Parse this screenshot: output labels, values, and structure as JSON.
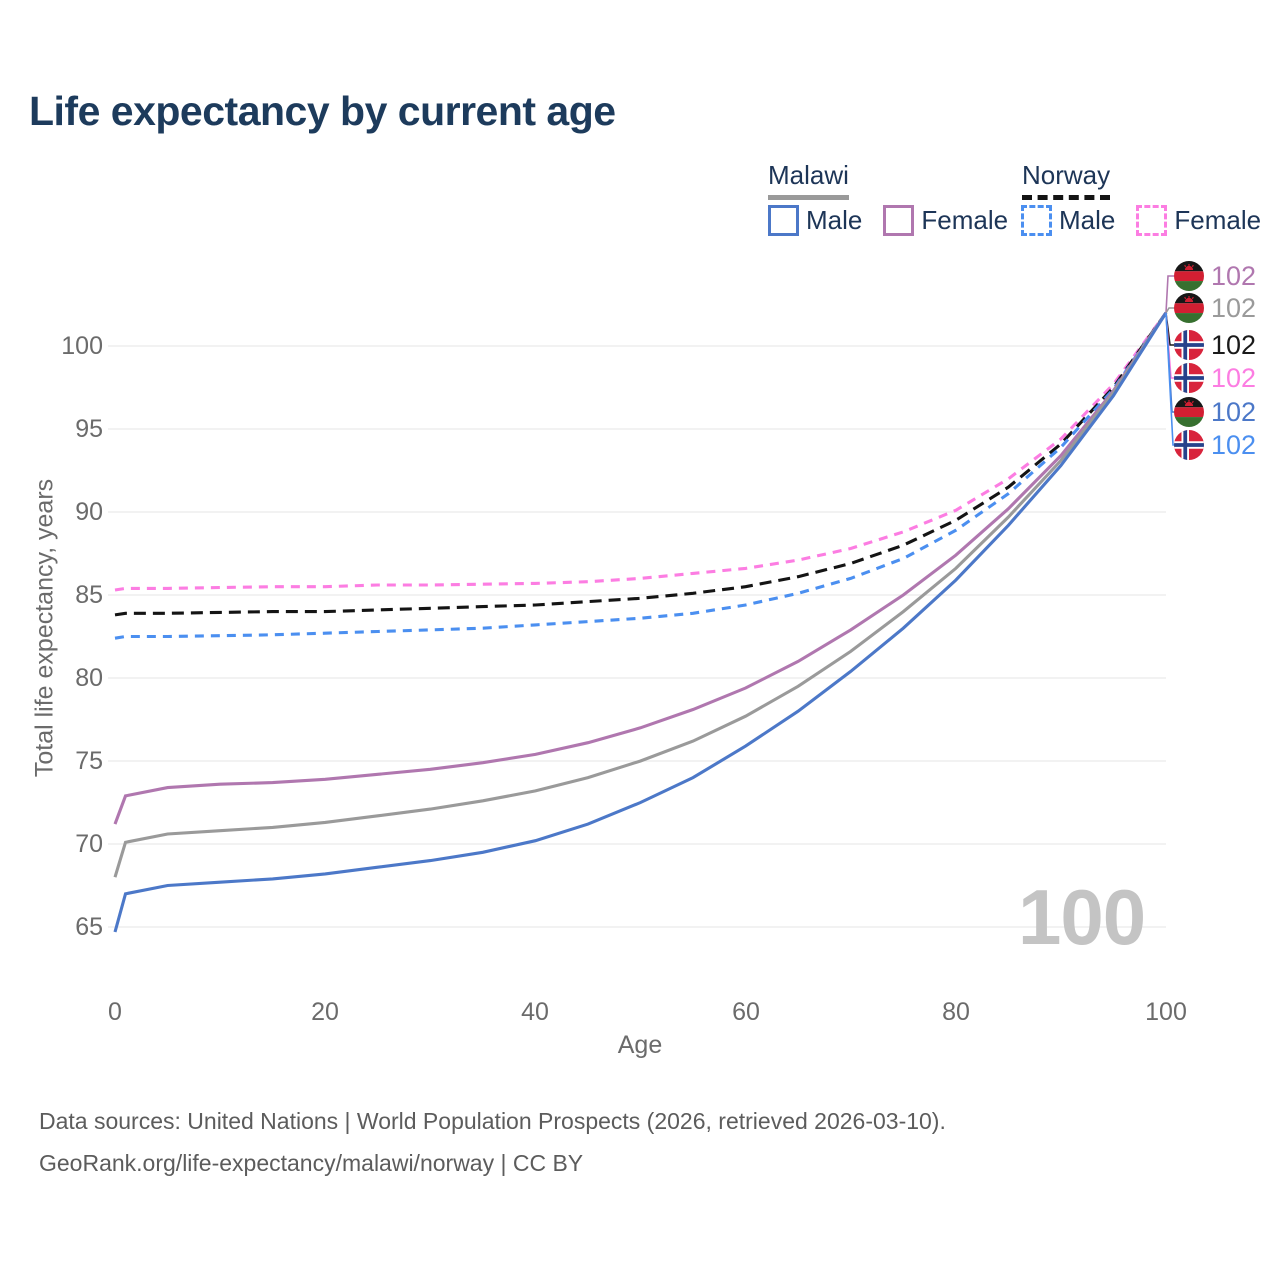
{
  "title": "Life expectancy by current age",
  "legend": {
    "groups": [
      {
        "label": "Malawi",
        "items": [
          {
            "label": "Male"
          },
          {
            "label": "Female"
          }
        ]
      },
      {
        "label": "Norway",
        "items": [
          {
            "label": "Male"
          },
          {
            "label": "Female"
          }
        ]
      }
    ]
  },
  "colors": {
    "malawi_male": "#4c78c8",
    "malawi_both": "#9a9a9a",
    "malawi_female": "#b077af",
    "norway_male": "#4b8ff0",
    "norway_both": "#141414",
    "norway_female": "#fc7de2",
    "title_text": "#1d3b5c",
    "axis_text": "#6b6b6b",
    "grid": "#eaeaea",
    "watermark": "#c4c4c4"
  },
  "chart_data": {
    "type": "line",
    "title": "Life expectancy by current age",
    "xlabel": "Age",
    "ylabel": "Total life expectancy, years",
    "xlim": [
      0,
      100
    ],
    "ylim": [
      64.5,
      103
    ],
    "x_ticks": [
      0,
      20,
      40,
      60,
      80,
      100
    ],
    "y_ticks": [
      65,
      70,
      75,
      80,
      85,
      90,
      95,
      100
    ],
    "grid": "horizontal",
    "legend_position": "top-right",
    "watermark": "100",
    "x": [
      0,
      1,
      5,
      10,
      15,
      20,
      25,
      30,
      35,
      40,
      45,
      50,
      55,
      60,
      65,
      70,
      75,
      80,
      85,
      90,
      95,
      100
    ],
    "series": [
      {
        "name": "Norway Female",
        "country": "Norway",
        "sex": "Female",
        "style": "dashed",
        "color": "#fc7de2",
        "end_label": "102",
        "values": [
          85.3,
          85.4,
          85.4,
          85.45,
          85.5,
          85.5,
          85.6,
          85.6,
          85.65,
          85.7,
          85.8,
          86.0,
          86.3,
          86.6,
          87.1,
          87.8,
          88.8,
          90.1,
          92.0,
          94.4,
          97.7,
          102
        ]
      },
      {
        "name": "Norway Both sexes",
        "country": "Norway",
        "sex": "Both",
        "style": "dashed",
        "color": "#141414",
        "end_label": "102",
        "values": [
          83.8,
          83.9,
          83.9,
          83.95,
          84.0,
          84.0,
          84.1,
          84.2,
          84.3,
          84.4,
          84.6,
          84.8,
          85.1,
          85.5,
          86.1,
          86.9,
          88.0,
          89.5,
          91.5,
          94.1,
          97.5,
          102
        ]
      },
      {
        "name": "Norway Male",
        "country": "Norway",
        "sex": "Male",
        "style": "dashed",
        "color": "#4b8ff0",
        "end_label": "102",
        "values": [
          82.4,
          82.5,
          82.5,
          82.55,
          82.6,
          82.7,
          82.8,
          82.9,
          83.0,
          83.2,
          83.4,
          83.6,
          83.9,
          84.4,
          85.1,
          86.0,
          87.2,
          88.9,
          91.1,
          93.9,
          97.4,
          102
        ]
      },
      {
        "name": "Malawi Female",
        "country": "Malawi",
        "sex": "Female",
        "style": "solid",
        "color": "#b077af",
        "end_label": "102",
        "values": [
          71.2,
          72.9,
          73.4,
          73.6,
          73.7,
          73.9,
          74.2,
          74.5,
          74.9,
          75.4,
          76.1,
          77.0,
          78.1,
          79.4,
          81.0,
          82.9,
          85.0,
          87.4,
          90.2,
          93.4,
          97.3,
          102
        ]
      },
      {
        "name": "Malawi Both sexes",
        "country": "Malawi",
        "sex": "Both",
        "style": "solid",
        "color": "#9a9a9a",
        "end_label": "102",
        "values": [
          68.0,
          70.1,
          70.6,
          70.8,
          71.0,
          71.3,
          71.7,
          72.1,
          72.6,
          73.2,
          74.0,
          75.0,
          76.2,
          77.7,
          79.5,
          81.6,
          84.0,
          86.6,
          89.7,
          93.1,
          97.2,
          102
        ]
      },
      {
        "name": "Malawi Male",
        "country": "Malawi",
        "sex": "Male",
        "style": "solid",
        "color": "#4c78c8",
        "end_label": "102",
        "values": [
          64.7,
          67.0,
          67.5,
          67.7,
          67.9,
          68.2,
          68.6,
          69.0,
          69.5,
          70.2,
          71.2,
          72.5,
          74.0,
          75.9,
          78.0,
          80.4,
          83.0,
          85.9,
          89.2,
          92.8,
          97.0,
          102
        ]
      }
    ]
  },
  "end_labels": [
    {
      "flag": "malawi",
      "series": "Malawi Female",
      "value": "102",
      "color": "#b077af"
    },
    {
      "flag": "malawi",
      "series": "Malawi Both sexes",
      "value": "102",
      "color": "#9a9a9a"
    },
    {
      "flag": "norway",
      "series": "Norway Both sexes",
      "value": "102",
      "color": "#1a1a1a"
    },
    {
      "flag": "norway",
      "series": "Norway Female",
      "value": "102",
      "color": "#fc7de2"
    },
    {
      "flag": "malawi",
      "series": "Malawi Male",
      "value": "102",
      "color": "#4c78c8"
    },
    {
      "flag": "norway",
      "series": "Norway Male",
      "value": "102",
      "color": "#4b8ff0"
    }
  ],
  "footer": {
    "line1": "Data sources: United Nations | World Population Prospects (2026, retrieved 2026-03-10).",
    "line2": "GeoRank.org/life-expectancy/malawi/norway | CC BY"
  }
}
